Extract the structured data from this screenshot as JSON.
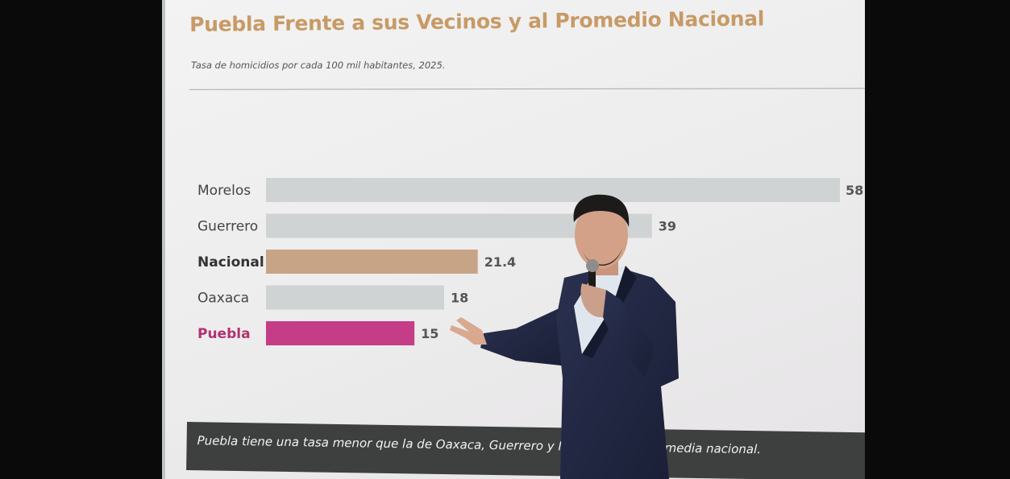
{
  "title": "Puebla Frente a sus Vecinos y al Promedio Nacional",
  "subtitle": "Tasa de homicidios por cada 100 mil habitantes, 2025.",
  "caption": {
    "part1": "Puebla tiene una tasa menor que la de Oaxaca, Guerrero y Morelos, y es",
    "part2": "media nacional."
  },
  "colors": {
    "title": "#c89a66",
    "neighbor_bar": "#cfd3d4",
    "national_bar": "#c8a486",
    "puebla_bar": "#c43d86",
    "puebla_label": "#b2316f",
    "caption_band": "#3e3f3f"
  },
  "chart_data": {
    "type": "bar",
    "orientation": "horizontal",
    "title": "Puebla Frente a sus Vecinos y al Promedio Nacional",
    "subtitle": "Tasa de homicidios por cada 100 mil habitantes, 2025.",
    "categories": [
      "Morelos",
      "Guerrero",
      "Nacional",
      "Oaxaca",
      "Puebla"
    ],
    "values": [
      58,
      39,
      21.4,
      18,
      15
    ],
    "value_labels": [
      "58",
      "39",
      "21.4",
      "18",
      "15"
    ],
    "category_colors": [
      "#cfd3d4",
      "#cfd3d4",
      "#c8a486",
      "#cfd3d4",
      "#c43d86"
    ],
    "xlim": [
      0,
      58
    ],
    "grid": false,
    "legend": "none"
  }
}
